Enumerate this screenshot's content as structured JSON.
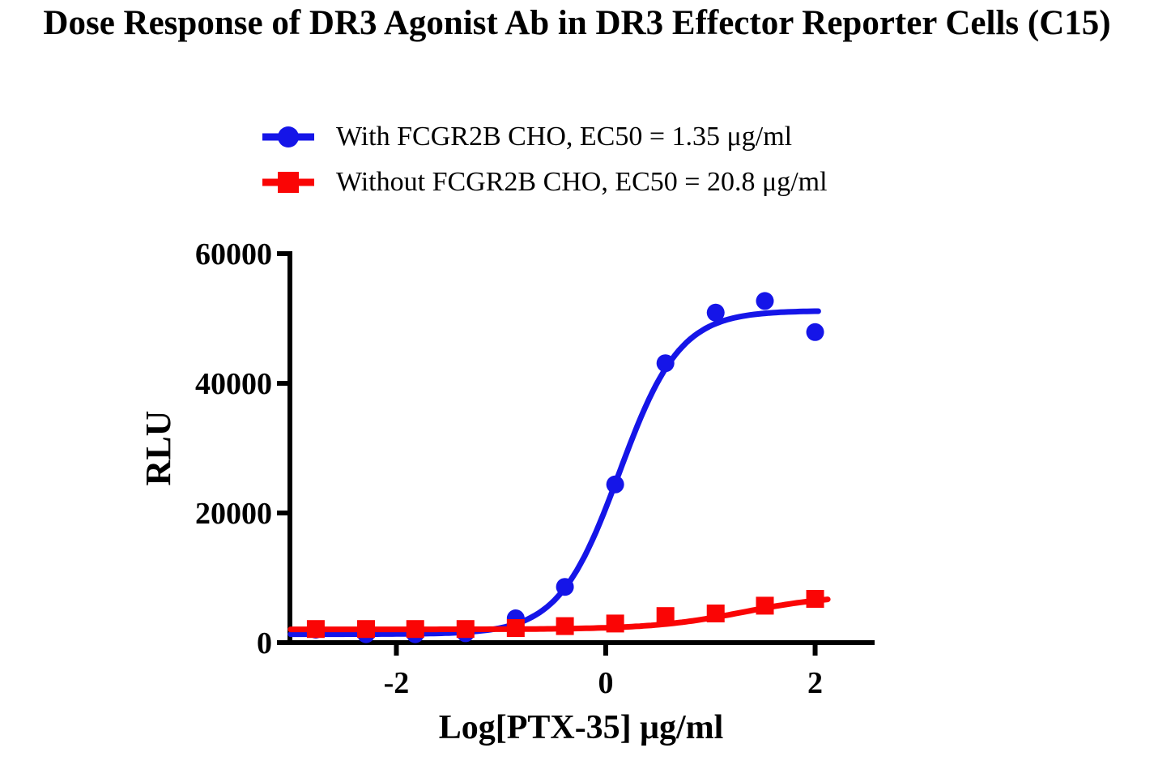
{
  "title": "Dose Response of DR3 Agonist Ab in DR3 Effector Reporter Cells (C15)",
  "legend": [
    {
      "label": "With FCGR2B CHO, EC50 = 1.35 μg/ml",
      "color": "#1515E8",
      "marker": "circle"
    },
    {
      "label": "Without FCGR2B CHO, EC50 = 20.8 μg/ml",
      "color": "#FA0505",
      "marker": "square"
    }
  ],
  "chart_data": {
    "type": "scatter",
    "title": "Dose Response of DR3 Agonist Ab in DR3 Effector Reporter Cells (C15)",
    "xlabel": "Log[PTX-35] μg/ml",
    "ylabel": "RLU",
    "xlim": [
      -3.017,
      2.545
    ],
    "ylim": [
      0,
      60000
    ],
    "grid": false,
    "legend_position": "top",
    "x_ticks": [
      {
        "v": -2,
        "label": "-2"
      },
      {
        "v": 0,
        "label": "0"
      },
      {
        "v": 2,
        "label": "2"
      }
    ],
    "y_ticks": [
      {
        "v": 0,
        "label": "0"
      },
      {
        "v": 20000,
        "label": "20000"
      },
      {
        "v": 40000,
        "label": "40000"
      },
      {
        "v": 60000,
        "label": "60000"
      }
    ],
    "x": [
      -2.77,
      -2.29,
      -1.82,
      -1.34,
      -0.86,
      -0.39,
      0.09,
      0.57,
      1.05,
      1.52,
      2.0
    ],
    "series": [
      {
        "name": "With FCGR2B CHO",
        "ec50_ugml": 1.35,
        "color": "#1515E8",
        "marker": "circle",
        "values": [
          2000,
          1300,
          1300,
          1450,
          3750,
          8600,
          24400,
          43100,
          50900,
          52700,
          47900
        ],
        "fit": {
          "model": "4PL",
          "bottom": 1300,
          "top": 51200,
          "logEC50": 0.13,
          "hill": 1.5,
          "x_start": -3.01,
          "x_end": 2.03
        }
      },
      {
        "name": "Without FCGR2B CHO",
        "ec50_ugml": 20.8,
        "color": "#FA0505",
        "marker": "square",
        "values": [
          2100,
          2100,
          2100,
          2100,
          2250,
          2550,
          2950,
          4100,
          4500,
          5700,
          6750
        ],
        "fit": {
          "model": "4PL",
          "bottom": 2050,
          "top": 7400,
          "logEC50": 1.318,
          "hill": 1.0,
          "x_start": -3.01,
          "x_end": 2.12
        }
      }
    ]
  }
}
